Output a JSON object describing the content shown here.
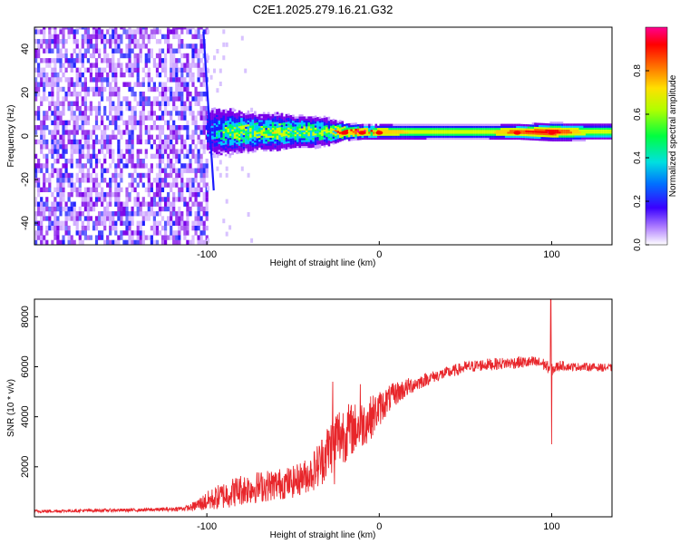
{
  "title": "C2E1.2025.279.16.21.G32",
  "chart_data": [
    {
      "type": "heatmap",
      "title": "",
      "xlabel": "Height of straight line (km)",
      "ylabel": "Frequency (Hz)",
      "xlim": [
        -200,
        135
      ],
      "ylim": [
        -50,
        50
      ],
      "xticks": [
        -100,
        0,
        100
      ],
      "yticks": [
        -40,
        -20,
        0,
        20,
        40
      ],
      "colorbar": {
        "label": "Normalized spectral amplitude",
        "range": [
          0.0,
          1.0
        ],
        "ticks": [
          0.0,
          0.2,
          0.4,
          0.6,
          0.8
        ],
        "tick_labels": [
          "0.0",
          "0.2",
          "0.4",
          "0.6",
          "0.8"
        ],
        "colormap": [
          "#ffffff",
          "#7a00e8",
          "#1a1aff",
          "#00c8ff",
          "#00ff60",
          "#ffff00",
          "#ff8000",
          "#ff0000",
          "#ff0090"
        ]
      },
      "features": {
        "noise_region_x": [
          -200,
          -100
        ],
        "diagonal_streak": {
          "x": [
            -102,
            -96
          ],
          "freq": [
            48,
            -25
          ]
        },
        "dominant_band_center_hz": 1.5,
        "hot_spots_x": [
          -20,
          -10,
          0,
          80,
          100
        ]
      },
      "band_profile": {
        "x": [
          -100,
          -90,
          -80,
          -70,
          -60,
          -50,
          -40,
          -30,
          -25,
          -20,
          -10,
          0,
          20,
          40,
          60,
          80,
          100,
          120,
          135
        ],
        "freq_halfwidth_hz": [
          10,
          9,
          8,
          7,
          7,
          6,
          6,
          5,
          4,
          3,
          2.5,
          2.5,
          2.5,
          2.5,
          2.5,
          2.5,
          3,
          3,
          3
        ],
        "peak_amplitude": [
          0.3,
          0.5,
          0.55,
          0.55,
          0.6,
          0.6,
          0.6,
          0.6,
          0.75,
          0.9,
          0.95,
          0.75,
          0.65,
          0.6,
          0.6,
          0.85,
          0.95,
          0.6,
          0.6
        ]
      }
    },
    {
      "type": "line",
      "title": "",
      "xlabel": "Height of straight line (km)",
      "ylabel": "SNR (10 * v/v)",
      "xlim": [
        -200,
        135
      ],
      "ylim": [
        0,
        8700
      ],
      "xticks": [
        -100,
        0,
        100
      ],
      "yticks": [
        2000,
        4000,
        6000,
        8000
      ],
      "series": [
        {
          "name": "SNR",
          "color": "#e8262b",
          "x": [
            -200,
            -180,
            -160,
            -140,
            -120,
            -110,
            -100,
            -90,
            -80,
            -70,
            -60,
            -50,
            -40,
            -35,
            -30,
            -25,
            -20,
            -15,
            -10,
            -5,
            0,
            5,
            10,
            15,
            20,
            30,
            40,
            50,
            60,
            70,
            80,
            90,
            95,
            100,
            105,
            110,
            120,
            135
          ],
          "values": [
            200,
            220,
            240,
            250,
            280,
            320,
            500,
            700,
            900,
            1000,
            1100,
            1200,
            1500,
            1800,
            2300,
            2800,
            3000,
            3200,
            3400,
            3700,
            4100,
            4500,
            4800,
            5000,
            5200,
            5500,
            5700,
            5900,
            6000,
            6050,
            6100,
            6100,
            6050,
            5800,
            6000,
            5950,
            5950,
            5900
          ],
          "noise_amplitude": [
            80,
            80,
            80,
            80,
            100,
            150,
            500,
            700,
            800,
            800,
            800,
            800,
            900,
            1200,
            1400,
            1600,
            1500,
            1300,
            1200,
            1100,
            900,
            700,
            600,
            500,
            400,
            300,
            300,
            300,
            300,
            300,
            300,
            300,
            300,
            300,
            250,
            200,
            200,
            200
          ],
          "spikes": [
            {
              "x": -27,
              "value": 5400
            },
            {
              "x": -26,
              "value": 1300
            },
            {
              "x": -11,
              "value": 5300
            },
            {
              "x": 99.5,
              "value": 8700
            },
            {
              "x": 100,
              "value": 2900
            }
          ]
        }
      ]
    }
  ]
}
